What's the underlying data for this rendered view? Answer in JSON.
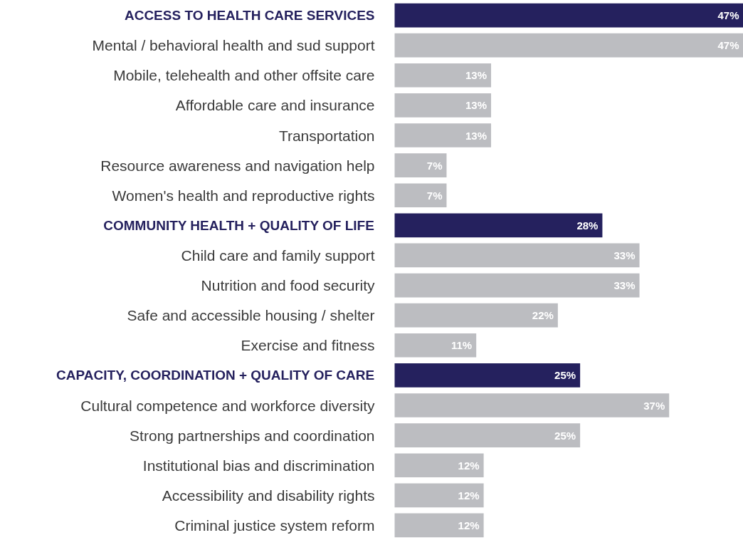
{
  "chart_data": {
    "type": "bar",
    "orientation": "horizontal",
    "value_labels": [
      "47%",
      "47%",
      "13%",
      "13%",
      "13%",
      "7%",
      "7%",
      "28%",
      "33%",
      "33%",
      "22%",
      "11%",
      "25%",
      "37%",
      "25%",
      "12%",
      "12%",
      "12%"
    ],
    "categories": [
      "ACCESS TO HEALTH CARE SERVICES",
      "Mental / behavioral health and sud support",
      "Mobile, telehealth and other offsite care",
      "Affordable care and insurance",
      "Transportation",
      "Resource awareness and navigation help",
      "Women's health and reproductive rights",
      "COMMUNITY HEALTH + QUALITY OF LIFE",
      "Child care and family support",
      "Nutrition and food security",
      "Safe and accessible housing / shelter",
      "Exercise and fitness",
      "CAPACITY, COORDINATION + QUALITY OF CARE",
      "Cultural competence and workforce diversity",
      "Strong partnerships and coordination",
      "Institutional bias and discrimination",
      "Accessibility and disability rights",
      "Criminal justice system reform"
    ],
    "values": [
      47,
      47,
      13,
      13,
      13,
      7,
      7,
      28,
      33,
      33,
      22,
      11,
      25,
      37,
      25,
      12,
      12,
      12
    ],
    "colors": [
      "#25215e",
      "#bcbdc1",
      "#bcbdc1",
      "#bcbdc1",
      "#bcbdc1",
      "#bcbdc1",
      "#bcbdc1",
      "#25215e",
      "#bcbdc1",
      "#bcbdc1",
      "#bcbdc1",
      "#bcbdc1",
      "#25215e",
      "#bcbdc1",
      "#bcbdc1",
      "#bcbdc1",
      "#bcbdc1",
      "#bcbdc1"
    ],
    "grid": false
  }
}
